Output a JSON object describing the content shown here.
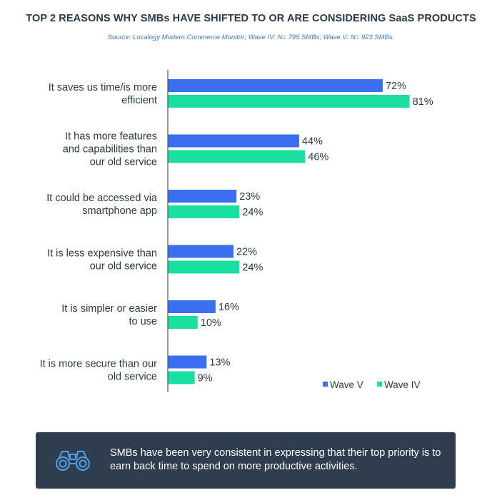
{
  "title": "TOP 2 REASONS WHY SMBs HAVE SHIFTED TO OR ARE CONSIDERING SaaS PRODUCTS",
  "source": "Source: Localogy Modern Commerce Monitor; Wave IV: N= 795 SMBs; Wave V: N= 923 SMBs.",
  "callout": {
    "text": "SMBs have been very consistent in expressing that their top priority is to earn back time to spend on more productive activities.",
    "icon": "binoculars-icon"
  },
  "colors": {
    "wave_v": "#3a6ff0",
    "wave_iv": "#19e0a0"
  },
  "chart_data": {
    "type": "bar",
    "orientation": "horizontal",
    "categories": [
      [
        "It saves us time/is more",
        "efficient"
      ],
      [
        "It has more features",
        "and capabilities than",
        "our old service"
      ],
      [
        "It could be accessed via",
        "smartphone app"
      ],
      [
        "It is less expensive than",
        "our old service"
      ],
      [
        "It is simpler or easier",
        "to use"
      ],
      [
        "It is more secure than our",
        "old service"
      ]
    ],
    "series": [
      {
        "name": "Wave V",
        "values": [
          72,
          44,
          23,
          22,
          16,
          13
        ],
        "labels": [
          "72%",
          "44%",
          "23%",
          "22%",
          "16%",
          "13%"
        ]
      },
      {
        "name": "Wave IV",
        "values": [
          81,
          46,
          24,
          24,
          10,
          9
        ],
        "labels": [
          "81%",
          "46%",
          "24%",
          "24%",
          "10%",
          "9%"
        ]
      }
    ],
    "xlim": [
      0,
      100
    ],
    "grid": false,
    "legend": "bottom-right",
    "title": "TOP 2 REASONS WHY SMBs HAVE SHIFTED TO OR ARE CONSIDERING SaaS PRODUCTS",
    "xlabel": "",
    "ylabel": ""
  }
}
